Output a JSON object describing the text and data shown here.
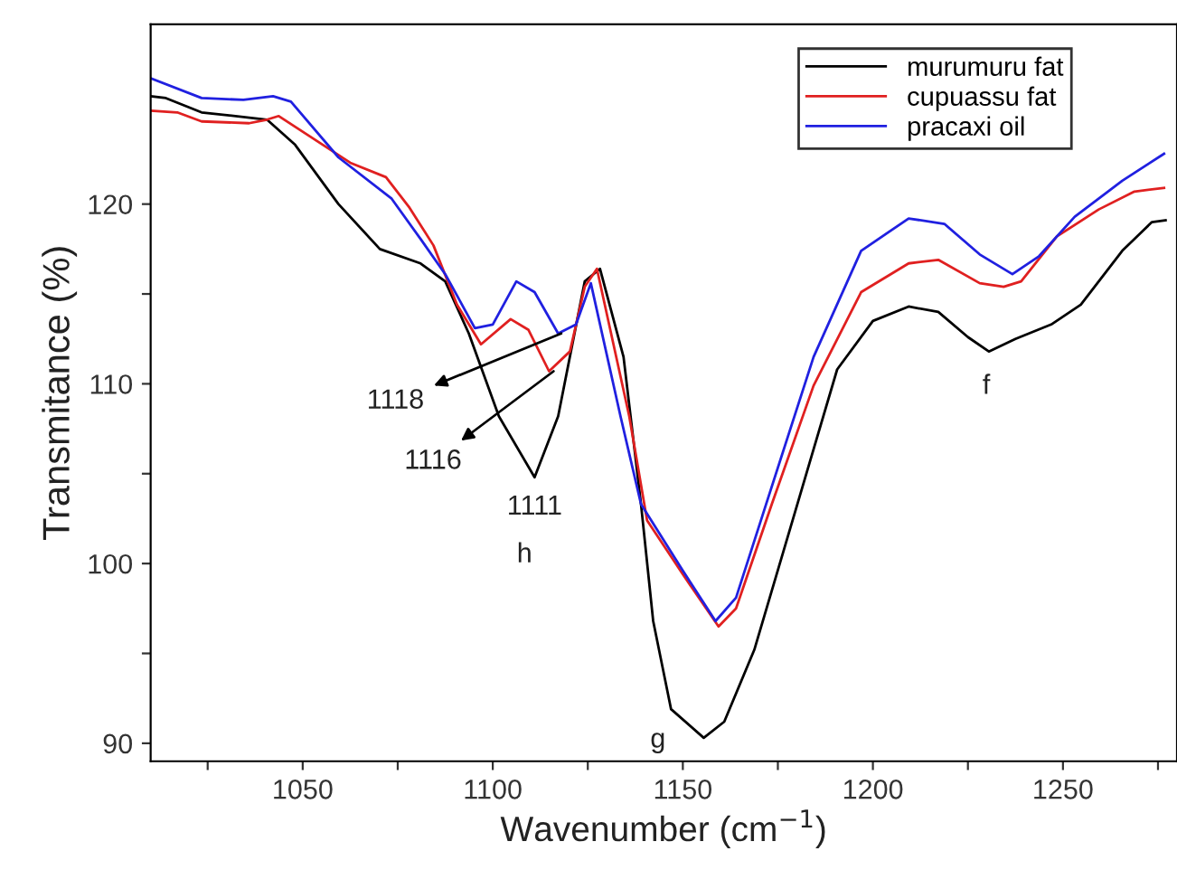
{
  "chart_data": {
    "type": "line",
    "xlabel": "Wavenumber (cm$^{−1}$)",
    "ylabel": "Transmitance (%)",
    "xlim": [
      1010,
      1280
    ],
    "ylim": [
      89,
      130
    ],
    "xticks": [
      {
        "value": 1025,
        "label": null
      },
      1050,
      {
        "value": 1075,
        "label": null
      },
      1100,
      {
        "value": 1125,
        "label": null
      },
      1150,
      {
        "value": 1175,
        "label": null
      },
      1200,
      {
        "value": 1225,
        "label": null
      },
      1250,
      {
        "value": 1275,
        "label": null
      }
    ],
    "yticks": [
      90,
      {
        "value": 95,
        "label": null
      },
      100,
      {
        "value": 105,
        "label": null
      },
      110,
      {
        "value": 115,
        "label": null
      },
      120
    ],
    "grid": false,
    "legend": "top right",
    "marker": "none",
    "line_style": "solid",
    "series": [
      {
        "name": "murumuru fat",
        "color": "#000000",
        "x": [
          1010,
          1014,
          1023.4,
          1040.6,
          1048,
          1059.4,
          1070.3,
          1081,
          1087.5,
          1093.7,
          1101.6,
          1111,
          1117.2,
          1124.2,
          1128.2,
          1134.4,
          1139,
          1142.2,
          1146.9,
          1155.5,
          1160.9,
          1168.8,
          1179.7,
          1190.6,
          1200,
          1209.4,
          1217.2,
          1225,
          1230.5,
          1237.5,
          1246.9,
          1254.7,
          1265.6,
          1273.4,
          1277
        ],
        "values": [
          126.0,
          125.9,
          125.1,
          124.7,
          123.3,
          120.0,
          117.5,
          116.7,
          115.7,
          112.8,
          108.2,
          104.8,
          108.2,
          115.7,
          116.4,
          111.5,
          103.3,
          96.8,
          91.9,
          90.3,
          91.2,
          95.2,
          103.0,
          110.8,
          113.5,
          114.3,
          114.0,
          112.6,
          111.8,
          112.5,
          113.3,
          114.4,
          117.4,
          119.0,
          119.1
        ]
      },
      {
        "name": "cupuassu fat",
        "color": "#e02020",
        "x": [
          1010,
          1017,
          1023.4,
          1035.9,
          1040.6,
          1043.7,
          1053.1,
          1062.5,
          1071.9,
          1078.1,
          1084.4,
          1090.6,
          1096.9,
          1104.7,
          1109.4,
          1114.8,
          1120.3,
          1124.2,
          1127.4,
          1135.9,
          1140.6,
          1150,
          1159.4,
          1164,
          1173.4,
          1184.4,
          1196.9,
          1209.4,
          1217.2,
          1228.1,
          1234.4,
          1239,
          1248.4,
          1259.4,
          1268.8,
          1276.6
        ],
        "values": [
          125.2,
          125.1,
          124.6,
          124.5,
          124.7,
          124.9,
          123.6,
          122.3,
          121.5,
          119.8,
          117.7,
          114.4,
          112.2,
          113.6,
          113.0,
          110.7,
          111.8,
          115.4,
          116.4,
          108.2,
          102.4,
          99.4,
          96.5,
          97.5,
          103.3,
          109.9,
          115.1,
          116.7,
          116.9,
          115.6,
          115.4,
          115.7,
          118.2,
          119.7,
          120.7,
          120.9
        ]
      },
      {
        "name": "pracaxi oil",
        "color": "#2020e0",
        "x": [
          1010,
          1023.4,
          1034.4,
          1042.2,
          1046.9,
          1059.4,
          1073.4,
          1081.2,
          1087.5,
          1095.3,
          1100,
          1106.2,
          1111,
          1117.2,
          1121.9,
          1125.8,
          1133.6,
          1139,
          1150,
          1158.6,
          1164,
          1171.9,
          1184.4,
          1196.9,
          1209.4,
          1218.8,
          1228.1,
          1236.7,
          1243.7,
          1253.1,
          1265.6,
          1276.6
        ],
        "values": [
          127.0,
          125.9,
          125.8,
          126.0,
          125.7,
          122.6,
          120.3,
          118.0,
          116.1,
          113.1,
          113.3,
          115.7,
          115.1,
          112.8,
          113.3,
          115.6,
          108.2,
          103.3,
          99.6,
          96.8,
          98.1,
          103.3,
          111.5,
          117.4,
          119.2,
          118.9,
          117.2,
          116.1,
          117.1,
          119.3,
          121.3,
          122.8
        ]
      }
    ],
    "annotations": [
      {
        "text": "1118",
        "x": 1118,
        "y": 112.8
      },
      {
        "text": "1116",
        "x": 1116,
        "y": 110.7
      },
      {
        "text": "1111",
        "x": 1111,
        "y": 104.8
      },
      {
        "text": "h",
        "x": 1111,
        "y": 104.8
      },
      {
        "text": "g",
        "x": 1156,
        "y": 90.3
      },
      {
        "text": "f",
        "x": 1230.5,
        "y": 111.8
      }
    ]
  }
}
